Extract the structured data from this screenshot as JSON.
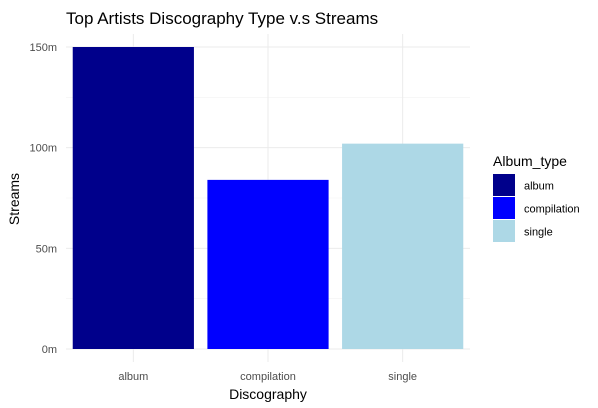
{
  "chart_data": {
    "type": "bar",
    "title": "Top Artists Discography Type v.s Streams",
    "xlabel": "Discography",
    "ylabel": "Streams",
    "categories": [
      "album",
      "compilation",
      "single"
    ],
    "values": [
      150000000,
      84000000,
      102000000
    ],
    "colors": [
      "#00008B",
      "#0000FF",
      "#ADD8E6"
    ],
    "ylim": [
      0,
      150000000
    ],
    "yticks": [
      0,
      50000000,
      100000000,
      150000000
    ],
    "ytick_labels": [
      "0m",
      "50m",
      "100m",
      "150m"
    ],
    "grid": true,
    "legend": {
      "title": "Album_type",
      "position": "right",
      "entries": [
        "album",
        "compilation",
        "single"
      ]
    }
  }
}
